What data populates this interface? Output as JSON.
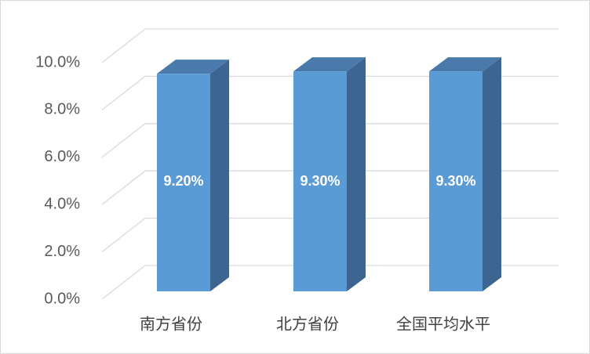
{
  "chart_data": {
    "type": "bar3d",
    "categories": [
      "南方省份",
      "北方省份",
      "全国平均水平"
    ],
    "values": [
      9.2,
      9.3,
      9.3
    ],
    "value_labels": [
      "9.20%",
      "9.30%",
      "9.30%"
    ],
    "color": "#5b9bd5",
    "ylim": [
      0,
      10
    ],
    "yticks": [
      {
        "value": 0,
        "label": "0.0%"
      },
      {
        "value": 2,
        "label": "2.0%"
      },
      {
        "value": 4,
        "label": "4.0%"
      },
      {
        "value": 6,
        "label": "6.0%"
      },
      {
        "value": 8,
        "label": "8.0%"
      },
      {
        "value": 10,
        "label": "10.0%"
      }
    ],
    "grid": true
  }
}
